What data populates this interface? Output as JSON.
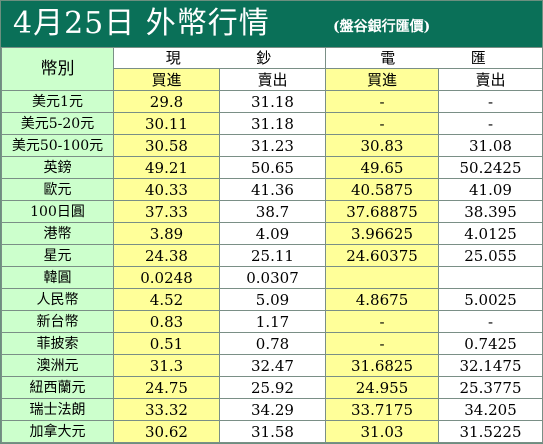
{
  "header": {
    "title": "4月25日 外幣行情",
    "subtitle": "(盤谷銀行匯價)"
  },
  "table": {
    "corner_label": "幣別",
    "group_cash_left": "現",
    "group_cash_right": "鈔",
    "group_wire_left": "電",
    "group_wire_right": "匯",
    "col_buy": "買進",
    "col_sell": "賣出",
    "rows": [
      {
        "currency": "美元1元",
        "cash_buy": "29.8",
        "cash_sell": "31.18",
        "wire_buy": "-",
        "wire_sell": "-"
      },
      {
        "currency": "美元5-20元",
        "cash_buy": "30.11",
        "cash_sell": "31.18",
        "wire_buy": "-",
        "wire_sell": "-"
      },
      {
        "currency": "美元50-100元",
        "cash_buy": "30.58",
        "cash_sell": "31.23",
        "wire_buy": "30.83",
        "wire_sell": "31.08"
      },
      {
        "currency": "英鎊",
        "cash_buy": "49.21",
        "cash_sell": "50.65",
        "wire_buy": "49.65",
        "wire_sell": "50.2425"
      },
      {
        "currency": "歐元",
        "cash_buy": "40.33",
        "cash_sell": "41.36",
        "wire_buy": "40.5875",
        "wire_sell": "41.09"
      },
      {
        "currency": "100日圓",
        "cash_buy": "37.33",
        "cash_sell": "38.7",
        "wire_buy": "37.68875",
        "wire_sell": "38.395"
      },
      {
        "currency": "港幣",
        "cash_buy": "3.89",
        "cash_sell": "4.09",
        "wire_buy": "3.96625",
        "wire_sell": "4.0125"
      },
      {
        "currency": "星元",
        "cash_buy": "24.38",
        "cash_sell": "25.11",
        "wire_buy": "24.60375",
        "wire_sell": "25.055"
      },
      {
        "currency": "韓圓",
        "cash_buy": "0.0248",
        "cash_sell": "0.0307",
        "wire_buy": "",
        "wire_sell": ""
      },
      {
        "currency": "人民幣",
        "cash_buy": "4.52",
        "cash_sell": "5.09",
        "wire_buy": "4.8675",
        "wire_sell": "5.0025"
      },
      {
        "currency": "新台幣",
        "cash_buy": "0.83",
        "cash_sell": "1.17",
        "wire_buy": "-",
        "wire_sell": "-"
      },
      {
        "currency": "菲披索",
        "cash_buy": "0.51",
        "cash_sell": "0.78",
        "wire_buy": "-",
        "wire_sell": "0.7425"
      },
      {
        "currency": "澳洲元",
        "cash_buy": "31.3",
        "cash_sell": "32.47",
        "wire_buy": "31.6825",
        "wire_sell": "32.1475"
      },
      {
        "currency": "紐西蘭元",
        "cash_buy": "24.75",
        "cash_sell": "25.92",
        "wire_buy": "24.955",
        "wire_sell": "25.3775"
      },
      {
        "currency": "瑞士法朗",
        "cash_buy": "33.32",
        "cash_sell": "34.29",
        "wire_buy": "33.7175",
        "wire_sell": "34.205"
      },
      {
        "currency": "加拿大元",
        "cash_buy": "30.62",
        "cash_sell": "31.58",
        "wire_buy": "31.03",
        "wire_sell": "31.5225"
      }
    ]
  },
  "colors": {
    "header_bg": "#0a7058",
    "label_bg": "#ccffcc",
    "buy_bg": "#ffff99",
    "sell_bg": "#ffffff"
  }
}
